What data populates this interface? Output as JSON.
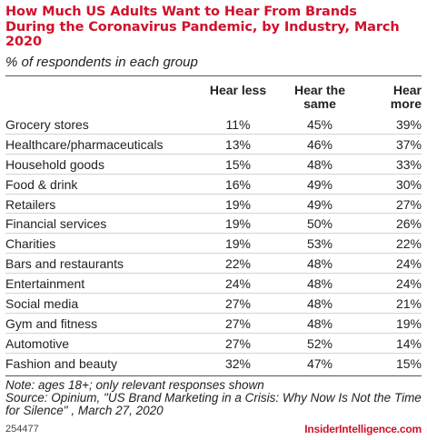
{
  "title": "How Much US Adults Want to Hear From Brands During the Coronavirus Pandemic, by Industry, March 2020",
  "subtitle": "% of respondents in each group",
  "columns": {
    "less": "Hear less",
    "same": "Hear the same",
    "more": "Hear more"
  },
  "rows": [
    {
      "name": "Grocery stores",
      "less": "11%",
      "same": "45%",
      "more": "39%"
    },
    {
      "name": "Healthcare/pharmaceuticals",
      "less": "13%",
      "same": "46%",
      "more": "37%"
    },
    {
      "name": "Household goods",
      "less": "15%",
      "same": "48%",
      "more": "33%"
    },
    {
      "name": "Food & drink",
      "less": "16%",
      "same": "49%",
      "more": "30%"
    },
    {
      "name": "Retailers",
      "less": "19%",
      "same": "49%",
      "more": "27%"
    },
    {
      "name": "Financial services",
      "less": "19%",
      "same": "50%",
      "more": "26%"
    },
    {
      "name": "Charities",
      "less": "19%",
      "same": "53%",
      "more": "22%"
    },
    {
      "name": "Bars and restaurants",
      "less": "22%",
      "same": "48%",
      "more": "24%"
    },
    {
      "name": "Entertainment",
      "less": "24%",
      "same": "48%",
      "more": "24%"
    },
    {
      "name": "Social media",
      "less": "27%",
      "same": "48%",
      "more": "21%"
    },
    {
      "name": "Gym and fitness",
      "less": "27%",
      "same": "48%",
      "more": "19%"
    },
    {
      "name": "Automotive",
      "less": "27%",
      "same": "52%",
      "more": "14%"
    },
    {
      "name": "Fashion and beauty",
      "less": "32%",
      "same": "47%",
      "more": "15%"
    }
  ],
  "note": "Note: ages 18+; only relevant responses shown",
  "source": "Source: Opinium, \"US Brand Marketing in a Crisis: Why Now Is Not the Time for Silence\" , March 27, 2020",
  "chart_id": "254477",
  "brand": "InsiderIntelligence.com",
  "colors": {
    "title": "#d0112b",
    "brand": "#d0112b",
    "text": "#222222"
  },
  "chart_data": {
    "type": "table",
    "title": "How Much US Adults Want to Hear From Brands During the Coronavirus Pandemic, by Industry, March 2020",
    "subtitle": "% of respondents in each group",
    "categories": [
      "Grocery stores",
      "Healthcare/pharmaceuticals",
      "Household goods",
      "Food & drink",
      "Retailers",
      "Financial services",
      "Charities",
      "Bars and restaurants",
      "Entertainment",
      "Social media",
      "Gym and fitness",
      "Automotive",
      "Fashion and beauty"
    ],
    "series": [
      {
        "name": "Hear less",
        "values": [
          11,
          13,
          15,
          16,
          19,
          19,
          19,
          22,
          24,
          27,
          27,
          27,
          32
        ]
      },
      {
        "name": "Hear the same",
        "values": [
          45,
          46,
          48,
          49,
          49,
          50,
          53,
          48,
          48,
          48,
          48,
          52,
          47
        ]
      },
      {
        "name": "Hear more",
        "values": [
          39,
          37,
          33,
          30,
          27,
          26,
          22,
          24,
          24,
          21,
          19,
          14,
          15
        ]
      }
    ]
  }
}
